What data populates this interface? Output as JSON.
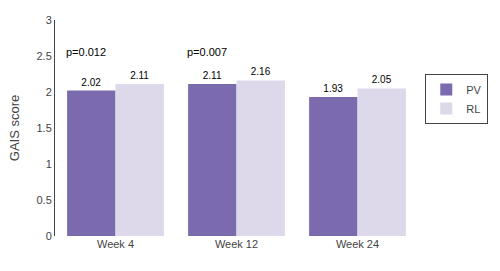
{
  "chart_data": {
    "type": "bar",
    "categories": [
      "Week 4",
      "Week 12",
      "Week 24"
    ],
    "series": [
      {
        "name": "PV",
        "color": "#7B6BAE",
        "values": [
          2.02,
          2.11,
          1.93
        ]
      },
      {
        "name": "RL",
        "color": "#DDD8EA",
        "values": [
          2.11,
          2.16,
          2.05
        ]
      }
    ],
    "ylabel": "GAIS score",
    "ylim": [
      0,
      3
    ],
    "yticks": [
      0,
      0.5,
      1,
      1.5,
      2,
      2.5,
      3
    ],
    "data_labels": true,
    "annotations": [
      {
        "text": "p=0.012",
        "x": "Week 4",
        "y": 2.45
      },
      {
        "text": "p=0.007",
        "x": "Week 12",
        "y": 2.45
      }
    ],
    "grid": false,
    "legend": "right"
  }
}
